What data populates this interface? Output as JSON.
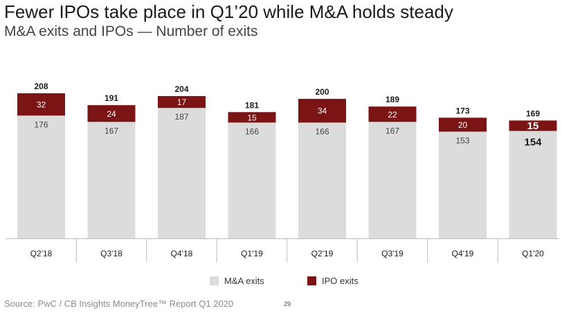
{
  "title": "Fewer IPOs take place in Q1’20 while M&A holds steady",
  "subtitle": "M&A exits and IPOs — Number of exits",
  "colors": {
    "ma": "#dcdcdc",
    "ipo": "#7b1414",
    "axis": "#bdbdbd"
  },
  "chart_data": {
    "type": "bar",
    "stacked": true,
    "categories": [
      "Q2'18",
      "Q3'18",
      "Q4'18",
      "Q1'19",
      "Q2'19",
      "Q3'19",
      "Q4'19",
      "Q1'20"
    ],
    "series": [
      {
        "name": "M&A exits",
        "values": [
          176,
          167,
          187,
          166,
          166,
          167,
          153,
          154
        ]
      },
      {
        "name": "IPO exits",
        "values": [
          32,
          24,
          17,
          15,
          34,
          22,
          20,
          15
        ]
      }
    ],
    "totals": [
      208,
      191,
      204,
      181,
      200,
      189,
      173,
      169
    ],
    "ylim": [
      0,
      208
    ],
    "legend_position": "bottom",
    "highlight_last": true
  },
  "legend": {
    "ma": "M&A exits",
    "ipo": "IPO exits"
  },
  "source": "Source: PwC / CB Insights MoneyTree™ Report Q1 2020",
  "page_number": "29"
}
